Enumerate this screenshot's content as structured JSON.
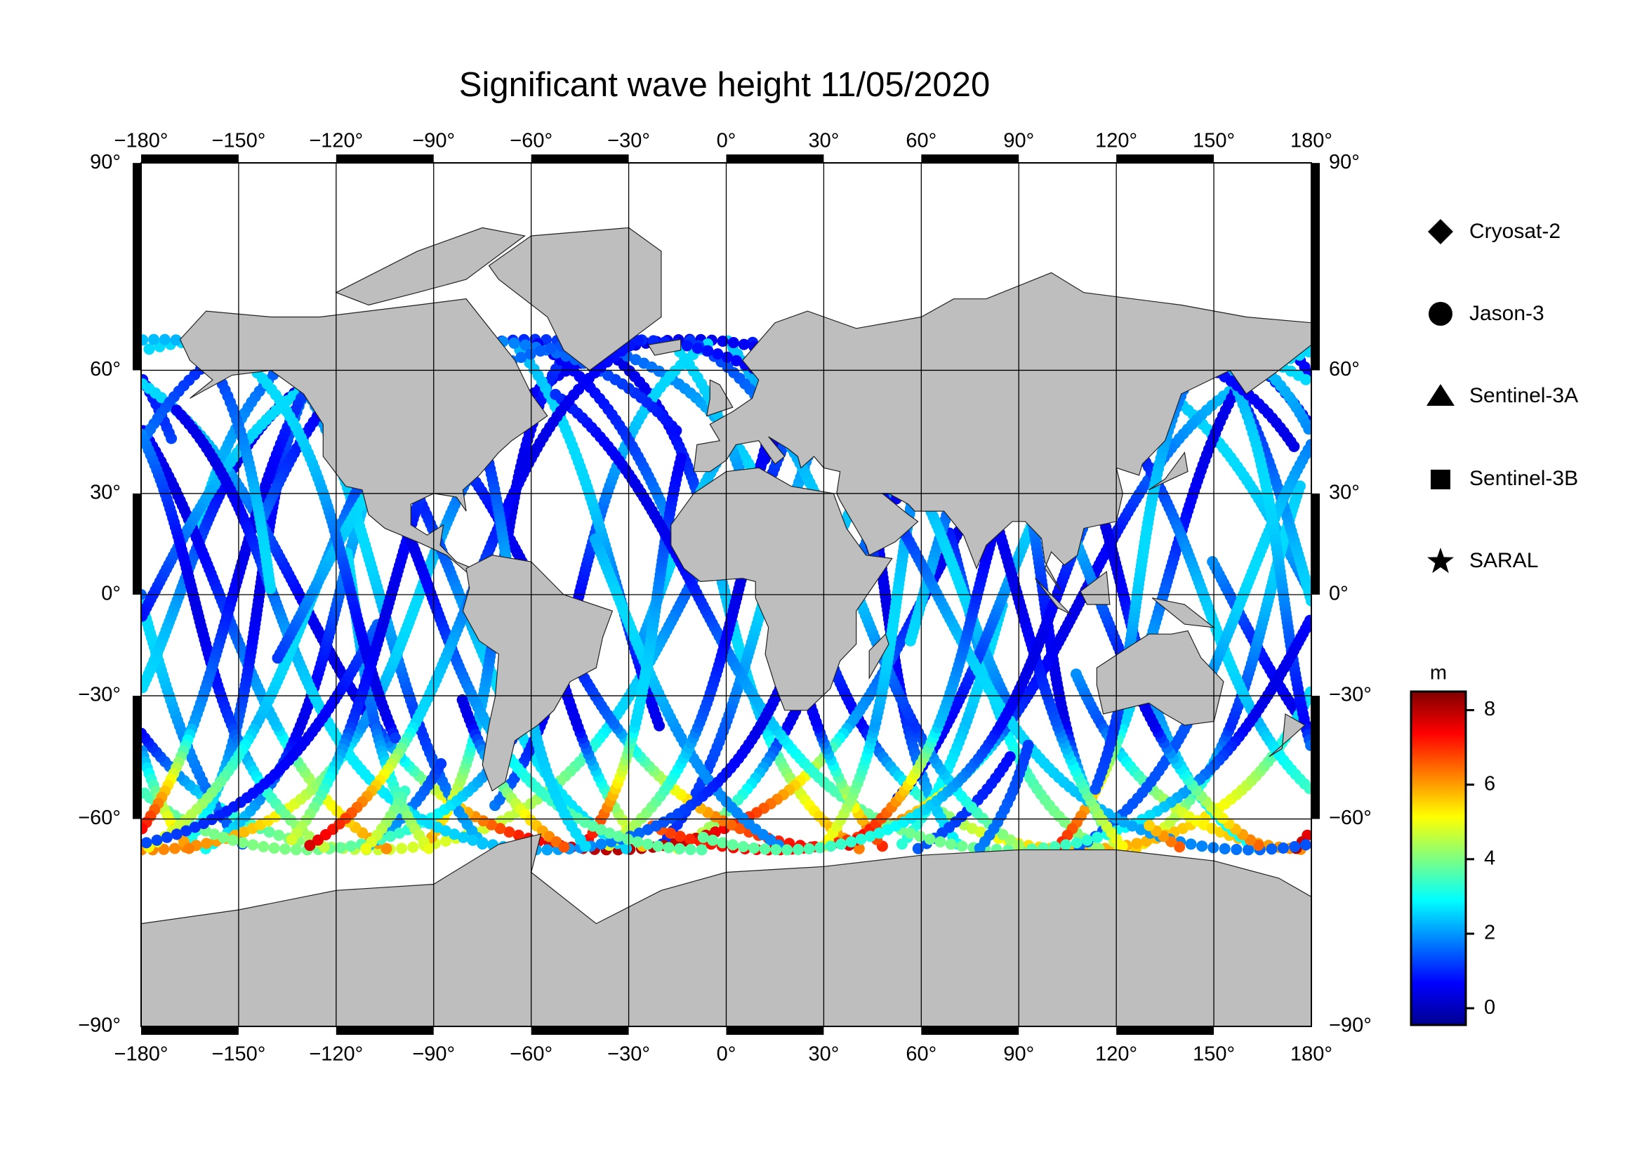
{
  "map": {
    "title": "Significant wave height 11/05/2020",
    "xlim": [
      -180,
      180
    ],
    "ylim": [
      -90,
      90
    ],
    "xticks": [
      {
        "value": -180,
        "label": "−180°"
      },
      {
        "value": -150,
        "label": "−150°"
      },
      {
        "value": -120,
        "label": "−120°"
      },
      {
        "value": -90,
        "label": "−90°"
      },
      {
        "value": -60,
        "label": "−60°"
      },
      {
        "value": -30,
        "label": "−30°"
      },
      {
        "value": 0,
        "label": "0°"
      },
      {
        "value": 30,
        "label": "30°"
      },
      {
        "value": 60,
        "label": "60°"
      },
      {
        "value": 90,
        "label": "90°"
      },
      {
        "value": 120,
        "label": "120°"
      },
      {
        "value": 150,
        "label": "150°"
      },
      {
        "value": 180,
        "label": "180°"
      }
    ],
    "yticks": [
      {
        "value": -90,
        "label": "−90°"
      },
      {
        "value": -60,
        "label": "−60°"
      },
      {
        "value": -30,
        "label": "−30°"
      },
      {
        "value": 0,
        "label": "0°"
      },
      {
        "value": 30,
        "label": "30°"
      },
      {
        "value": 60,
        "label": "60°"
      },
      {
        "value": 90,
        "label": "90°"
      }
    ],
    "legend": [
      "Cryosat-2",
      "Jason-3",
      "Sentinel-3A",
      "Sentinel-3B",
      "SARAL"
    ],
    "colorbar": {
      "unit": "m",
      "lim": [
        -0.45,
        8.5
      ],
      "ticks": [
        0,
        2,
        4,
        6,
        8
      ]
    }
  }
}
